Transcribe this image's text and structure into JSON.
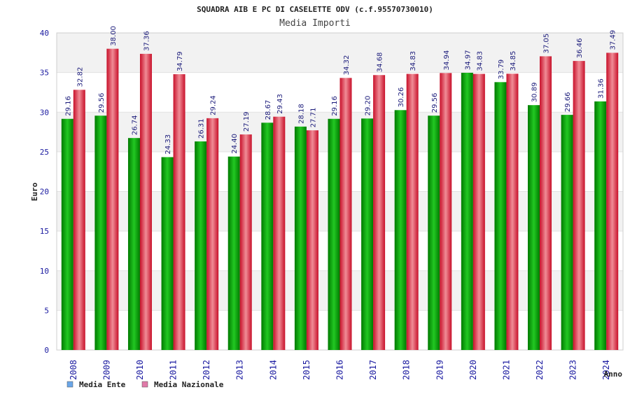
{
  "chart_data": {
    "type": "bar",
    "title": "SQUADRA AIB E PC DI CASELETTE ODV (c.f.95570730010)",
    "subtitle": "Media Importi",
    "ylabel": "Euro",
    "xlabel": "Anno",
    "ylim": [
      0,
      40
    ],
    "yticks": [
      0,
      5,
      10,
      15,
      20,
      25,
      30,
      35,
      40
    ],
    "categories": [
      "2008",
      "2009",
      "2010",
      "2011",
      "2012",
      "2013",
      "2014",
      "2015",
      "2016",
      "2017",
      "2018",
      "2019",
      "2020",
      "2021",
      "2022",
      "2023",
      "2024"
    ],
    "series": [
      {
        "name": "Media Ente",
        "color": "#1ab01a",
        "values": [
          29.16,
          29.56,
          26.74,
          24.33,
          26.31,
          24.4,
          28.67,
          28.18,
          29.16,
          29.2,
          30.26,
          29.56,
          34.97,
          33.79,
          30.89,
          29.66,
          31.36
        ],
        "labels": [
          "29.16",
          "29.56",
          "26.74",
          "24.33",
          "26.31",
          "24.40",
          "28.67",
          "28.18",
          "29.16",
          "29.20",
          "30.26",
          "29.56",
          "34.97",
          "33.79",
          "30.89",
          "29.66",
          "31.36"
        ]
      },
      {
        "name": "Media Nazionale",
        "color": "#e8283c",
        "values": [
          32.82,
          38.0,
          37.36,
          34.79,
          29.24,
          27.19,
          29.43,
          27.71,
          34.32,
          34.68,
          34.83,
          34.94,
          34.83,
          34.85,
          37.05,
          36.46,
          37.49
        ],
        "labels": [
          "32.82",
          "38.00",
          "37.36",
          "34.79",
          "29.24",
          "27.19",
          "29.43",
          "27.71",
          "34.32",
          "34.68",
          "34.83",
          "34.94",
          "34.83",
          "34.85",
          "37.05",
          "36.46",
          "37.49"
        ]
      }
    ],
    "legend": {
      "placement": "bottom-left",
      "items": [
        {
          "label": "Media Ente",
          "swatch_color": "#6aa6e8"
        },
        {
          "label": "Media Nazionale",
          "swatch_color": "#e07aa8"
        }
      ]
    },
    "grid": true
  }
}
